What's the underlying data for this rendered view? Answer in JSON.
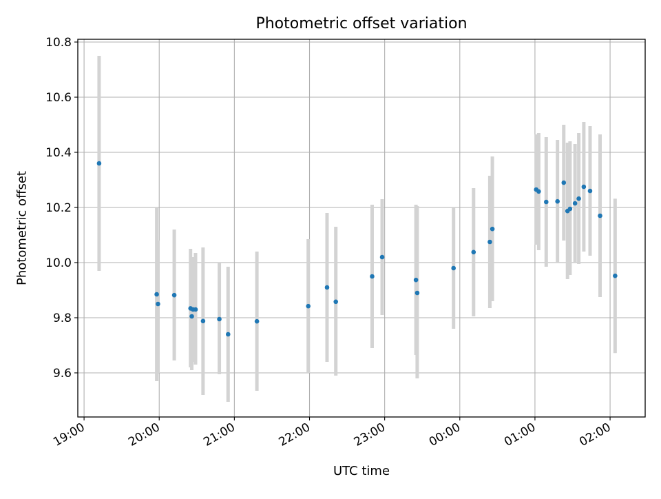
{
  "chart_data": {
    "type": "scatter",
    "title": "Photometric offset variation",
    "xlabel": "UTC time",
    "ylabel": "Photometric offset",
    "x_axis_kind": "time",
    "xlim": [
      "18:55",
      "02:28"
    ],
    "ylim": [
      9.44,
      10.81
    ],
    "x_ticks": [
      "19:00",
      "20:00",
      "21:00",
      "22:00",
      "23:00",
      "00:00",
      "01:00",
      "02:00"
    ],
    "y_ticks": [
      "9.6",
      "9.8",
      "10.0",
      "10.2",
      "10.4",
      "10.6",
      "10.8"
    ],
    "grid": true,
    "errorbar_color": "#d3d3d3",
    "point_color": "#1f77b4",
    "points": [
      {
        "t": "19:12",
        "y": 10.36,
        "lo": 9.97,
        "hi": 10.75
      },
      {
        "t": "19:58",
        "y": 9.885,
        "lo": 9.57,
        "hi": 10.2
      },
      {
        "t": "19:59",
        "y": 9.85,
        "lo": 9.6,
        "hi": 10.08
      },
      {
        "t": "20:12",
        "y": 9.882,
        "lo": 9.645,
        "hi": 10.12
      },
      {
        "t": "20:25",
        "y": 9.834,
        "lo": 9.62,
        "hi": 10.05
      },
      {
        "t": "20:26",
        "y": 9.805,
        "lo": 9.61,
        "hi": 10.0
      },
      {
        "t": "20:27",
        "y": 9.83,
        "lo": 9.64,
        "hi": 10.02
      },
      {
        "t": "20:29",
        "y": 9.83,
        "lo": 9.63,
        "hi": 10.035
      },
      {
        "t": "20:35",
        "y": 9.788,
        "lo": 9.52,
        "hi": 10.055
      },
      {
        "t": "20:48",
        "y": 9.795,
        "lo": 9.595,
        "hi": 10.0
      },
      {
        "t": "20:55",
        "y": 9.74,
        "lo": 9.495,
        "hi": 9.985
      },
      {
        "t": "21:18",
        "y": 9.787,
        "lo": 9.535,
        "hi": 10.04
      },
      {
        "t": "21:59",
        "y": 9.842,
        "lo": 9.6,
        "hi": 10.085
      },
      {
        "t": "22:14",
        "y": 9.91,
        "lo": 9.64,
        "hi": 10.18
      },
      {
        "t": "22:21",
        "y": 9.858,
        "lo": 9.59,
        "hi": 10.13
      },
      {
        "t": "22:50",
        "y": 9.95,
        "lo": 9.69,
        "hi": 10.21
      },
      {
        "t": "22:58",
        "y": 10.02,
        "lo": 9.81,
        "hi": 10.23
      },
      {
        "t": "23:25",
        "y": 9.937,
        "lo": 9.665,
        "hi": 10.21
      },
      {
        "t": "23:26",
        "y": 9.89,
        "lo": 9.58,
        "hi": 10.205
      },
      {
        "t": "23:55",
        "y": 9.98,
        "lo": 9.76,
        "hi": 10.2
      },
      {
        "t": "00:11",
        "y": 10.038,
        "lo": 9.805,
        "hi": 10.27
      },
      {
        "t": "00:24",
        "y": 10.075,
        "lo": 9.835,
        "hi": 10.315
      },
      {
        "t": "00:26",
        "y": 10.122,
        "lo": 9.86,
        "hi": 10.385
      },
      {
        "t": "01:01",
        "y": 10.265,
        "lo": 10.065,
        "hi": 10.465
      },
      {
        "t": "01:03",
        "y": 10.258,
        "lo": 10.045,
        "hi": 10.47
      },
      {
        "t": "01:09",
        "y": 10.22,
        "lo": 9.985,
        "hi": 10.455
      },
      {
        "t": "01:18",
        "y": 10.222,
        "lo": 10.0,
        "hi": 10.445
      },
      {
        "t": "01:23",
        "y": 10.29,
        "lo": 10.08,
        "hi": 10.5
      },
      {
        "t": "01:26",
        "y": 10.187,
        "lo": 9.94,
        "hi": 10.435
      },
      {
        "t": "01:28",
        "y": 10.195,
        "lo": 9.955,
        "hi": 10.44
      },
      {
        "t": "01:32",
        "y": 10.215,
        "lo": 10.0,
        "hi": 10.43
      },
      {
        "t": "01:35",
        "y": 10.232,
        "lo": 9.995,
        "hi": 10.47
      },
      {
        "t": "01:39",
        "y": 10.275,
        "lo": 10.04,
        "hi": 10.51
      },
      {
        "t": "01:44",
        "y": 10.26,
        "lo": 10.025,
        "hi": 10.495
      },
      {
        "t": "01:52",
        "y": 10.17,
        "lo": 9.875,
        "hi": 10.465
      },
      {
        "t": "02:04",
        "y": 9.952,
        "lo": 9.672,
        "hi": 10.232
      }
    ]
  }
}
